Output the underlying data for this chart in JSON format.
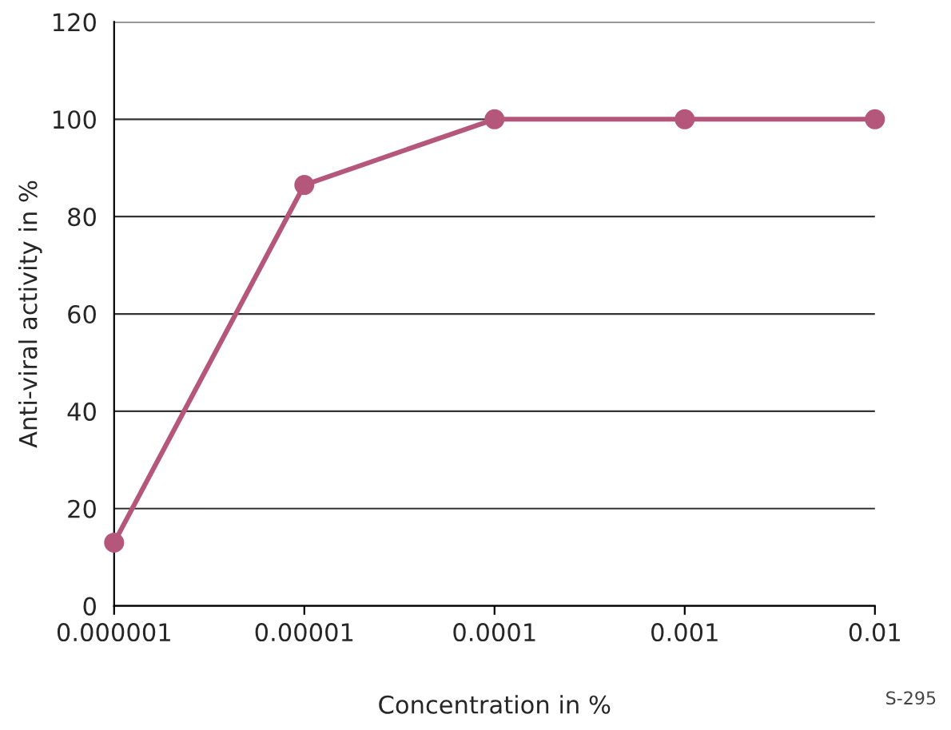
{
  "chart_data": {
    "type": "line",
    "xlabel": "Concentration in %",
    "ylabel": "Anti-viral activity in %",
    "categories": [
      "0.000001",
      "0.00001",
      "0.0001",
      "0.001",
      "0.01"
    ],
    "series": [
      {
        "color": "#b5577a",
        "values": [
          13,
          86.5,
          100,
          100,
          100
        ]
      }
    ],
    "ylim": [
      0,
      120
    ],
    "yticks": [
      0,
      20,
      40,
      60,
      80,
      100,
      120
    ],
    "grid": "y",
    "marker": "circle",
    "line_style": "solid",
    "annotations": [
      "S-295"
    ]
  }
}
